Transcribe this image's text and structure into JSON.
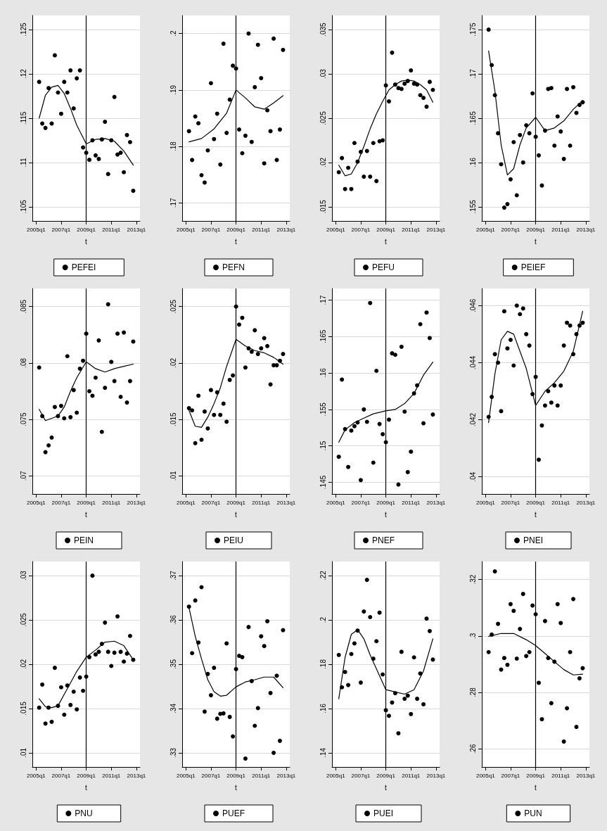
{
  "chart_data": [
    {
      "type": "scatter",
      "xlabel": "t",
      "x": [
        "2005-04",
        "2005-07",
        "2005-10",
        "2006-01",
        "2006-04",
        "2006-07",
        "2006-10",
        "2007-01",
        "2007-04",
        "2007-07",
        "2007-10",
        "2008-01",
        "2008-04",
        "2008-07",
        "2008-10",
        "2009-01",
        "2009-04",
        "2009-07",
        "2009-10",
        "2010-01",
        "2010-04",
        "2010-07",
        "2010-10",
        "2011-01",
        "2011-04",
        "2011-07",
        "2011-10",
        "2012-01",
        "2012-04",
        "2012-07",
        "2012-10"
      ],
      "xlim": [
        "2004-09-15",
        "2013-04-15"
      ],
      "xticks": [
        {
          "value": "2005-01",
          "label": "2005q1"
        },
        {
          "value": "2007-01",
          "label": "2007q1"
        },
        {
          "value": "2009-01",
          "label": "2009q1"
        },
        {
          "value": "2011-01",
          "label": "2011q1"
        },
        {
          "value": "2013-01",
          "label": "2013q1"
        }
      ],
      "ylim": [
        0.1034,
        0.1266
      ],
      "yticks": [
        {
          "value": 0.105,
          "label": ".105"
        },
        {
          "value": 0.11,
          "label": ".11"
        },
        {
          "value": 0.115,
          "label": ".115"
        },
        {
          "value": 0.12,
          "label": ".12"
        },
        {
          "value": 0.125,
          "label": ".125"
        }
      ],
      "grid": "y",
      "legend": "bottom",
      "marker": "circle",
      "ref_lines": [
        {
          "axis": "x",
          "value": "2009-01"
        }
      ],
      "series": [
        {
          "name": "PEFEI",
          "color": "#000000",
          "values": [
            0.1191,
            0.1144,
            0.1139,
            0.1184,
            0.1144,
            0.1221,
            0.1179,
            0.1155,
            0.1191,
            0.1179,
            0.1204,
            0.1161,
            0.1195,
            0.1204,
            0.1117,
            0.1111,
            0.1103,
            0.1125,
            0.1108,
            0.1104,
            0.1126,
            0.1146,
            0.1087,
            0.1125,
            0.1174,
            0.1109,
            0.1111,
            0.1089,
            0.1131,
            0.1123,
            0.1068
          ]
        },
        {
          "type": "line",
          "marker": "none",
          "color": "#000000",
          "x": [
            "2005-04",
            "2005-10",
            "2006-04",
            "2006-10",
            "2007-04",
            "2007-10",
            "2008-04",
            "2009-01",
            "2009-10",
            "2010-07",
            "2011-04",
            "2012-01",
            "2012-10"
          ],
          "values": [
            0.115,
            0.1176,
            0.1185,
            0.1187,
            0.1178,
            0.1161,
            0.1142,
            0.1121,
            0.1126,
            0.1127,
            0.1124,
            0.1113,
            0.1097
          ]
        }
      ]
    },
    {
      "type": "scatter",
      "xlabel": "t",
      "x": [
        "2005-04",
        "2005-07",
        "2005-10",
        "2006-01",
        "2006-04",
        "2006-07",
        "2006-10",
        "2007-01",
        "2007-04",
        "2007-07",
        "2007-10",
        "2008-01",
        "2008-04",
        "2008-07",
        "2008-10",
        "2009-01",
        "2009-04",
        "2009-07",
        "2009-10",
        "2010-01",
        "2010-04",
        "2010-07",
        "2010-10",
        "2011-01",
        "2011-04",
        "2011-07",
        "2011-10",
        "2012-01",
        "2012-04",
        "2012-07",
        "2012-10"
      ],
      "xlim": [
        "2004-09-15",
        "2013-04-15"
      ],
      "xticks": [
        {
          "value": "2005-01",
          "label": "2005q1"
        },
        {
          "value": "2007-01",
          "label": "2007q1"
        },
        {
          "value": "2009-01",
          "label": "2009q1"
        },
        {
          "value": "2011-01",
          "label": "2011q1"
        },
        {
          "value": "2013-01",
          "label": "2013q1"
        }
      ],
      "ylim": [
        0.1668,
        0.2032
      ],
      "yticks": [
        {
          "value": 0.17,
          "label": ".17"
        },
        {
          "value": 0.18,
          "label": ".18"
        },
        {
          "value": 0.19,
          "label": ".19"
        },
        {
          "value": 0.2,
          "label": ".2"
        }
      ],
      "grid": "y",
      "legend": "bottom",
      "marker": "circle",
      "ref_lines": [
        {
          "axis": "x",
          "value": "2009-01"
        }
      ],
      "series": [
        {
          "name": "PEFN",
          "color": "#000000",
          "values": [
            0.1827,
            0.1776,
            0.1853,
            0.1841,
            0.1749,
            0.1736,
            0.1793,
            0.1912,
            0.1813,
            0.1858,
            0.1768,
            0.1982,
            0.1824,
            0.1883,
            0.1943,
            0.1938,
            0.183,
            0.1788,
            0.1819,
            0.2,
            0.1808,
            0.1905,
            0.198,
            0.1921,
            0.177,
            0.1864,
            0.1827,
            0.1991,
            0.1776,
            0.183,
            0.1971
          ]
        },
        {
          "type": "line",
          "marker": "none",
          "color": "#000000",
          "x": [
            "2005-04",
            "2006-04",
            "2007-04",
            "2008-04",
            "2009-01",
            "2009-10",
            "2010-07",
            "2011-04",
            "2012-01",
            "2012-10"
          ],
          "values": [
            0.1808,
            0.1814,
            0.1831,
            0.1859,
            0.19,
            0.1886,
            0.187,
            0.1866,
            0.1877,
            0.189
          ]
        }
      ]
    },
    {
      "type": "scatter",
      "xlabel": "t",
      "x": [
        "2005-04",
        "2005-07",
        "2005-10",
        "2006-01",
        "2006-04",
        "2006-07",
        "2006-10",
        "2007-01",
        "2007-04",
        "2007-07",
        "2007-10",
        "2008-01",
        "2008-04",
        "2008-07",
        "2008-10",
        "2009-01",
        "2009-04",
        "2009-07",
        "2009-10",
        "2010-01",
        "2010-04",
        "2010-07",
        "2010-10",
        "2011-01",
        "2011-04",
        "2011-07",
        "2011-10",
        "2012-01",
        "2012-04",
        "2012-07",
        "2012-10"
      ],
      "xlim": [
        "2004-09-15",
        "2013-04-15"
      ],
      "xticks": [
        {
          "value": "2005-01",
          "label": "2005q1"
        },
        {
          "value": "2007-01",
          "label": "2007q1"
        },
        {
          "value": "2009-01",
          "label": "2009q1"
        },
        {
          "value": "2011-01",
          "label": "2011q1"
        },
        {
          "value": "2013-01",
          "label": "2013q1"
        }
      ],
      "ylim": [
        0.0134,
        0.0366
      ],
      "yticks": [
        {
          "value": 0.015,
          "label": ".015"
        },
        {
          "value": 0.02,
          "label": ".02"
        },
        {
          "value": 0.025,
          "label": ".025"
        },
        {
          "value": 0.03,
          "label": ".03"
        },
        {
          "value": 0.035,
          "label": ".035"
        }
      ],
      "grid": "y",
      "legend": "bottom",
      "marker": "circle",
      "ref_lines": [
        {
          "axis": "x",
          "value": "2009-01"
        }
      ],
      "series": [
        {
          "name": "PEFU",
          "color": "#000000",
          "values": [
            0.0189,
            0.0205,
            0.017,
            0.0194,
            0.017,
            0.0222,
            0.0201,
            0.0212,
            0.0184,
            0.0213,
            0.0184,
            0.0222,
            0.0179,
            0.0224,
            0.0225,
            0.0287,
            0.0269,
            0.0324,
            0.0288,
            0.0284,
            0.0283,
            0.0289,
            0.0292,
            0.0304,
            0.0289,
            0.0288,
            0.0276,
            0.0273,
            0.0263,
            0.0291,
            0.0282
          ]
        },
        {
          "type": "line",
          "marker": "none",
          "color": "#000000",
          "x": [
            "2005-04",
            "2005-10",
            "2006-04",
            "2006-10",
            "2007-04",
            "2007-10",
            "2008-04",
            "2008-10",
            "2009-04",
            "2009-10",
            "2010-04",
            "2010-10",
            "2011-04",
            "2011-10",
            "2012-04",
            "2012-10"
          ],
          "values": [
            0.0197,
            0.0185,
            0.0187,
            0.02,
            0.0218,
            0.0238,
            0.0255,
            0.0269,
            0.0282,
            0.0288,
            0.0292,
            0.0293,
            0.0292,
            0.0288,
            0.0282,
            0.0268
          ]
        }
      ]
    },
    {
      "type": "scatter",
      "xlabel": "t",
      "x": [
        "2005-04",
        "2005-07",
        "2005-10",
        "2006-01",
        "2006-04",
        "2006-07",
        "2006-10",
        "2007-01",
        "2007-04",
        "2007-07",
        "2007-10",
        "2008-01",
        "2008-04",
        "2008-07",
        "2008-10",
        "2009-01",
        "2009-04",
        "2009-07",
        "2009-10",
        "2010-01",
        "2010-04",
        "2010-07",
        "2010-10",
        "2011-01",
        "2011-04",
        "2011-07",
        "2011-10",
        "2012-01",
        "2012-04",
        "2012-07",
        "2012-10"
      ],
      "xlim": [
        "2004-09-15",
        "2013-04-15"
      ],
      "xticks": [
        {
          "value": "2005-01",
          "label": "2005q1"
        },
        {
          "value": "2007-01",
          "label": "2007q1"
        },
        {
          "value": "2009-01",
          "label": "2009q1"
        },
        {
          "value": "2011-01",
          "label": "2011q1"
        },
        {
          "value": "2013-01",
          "label": "2013q1"
        }
      ],
      "ylim": [
        0.1534,
        0.1766
      ],
      "yticks": [
        {
          "value": 0.155,
          "label": ".155"
        },
        {
          "value": 0.16,
          "label": ".16"
        },
        {
          "value": 0.165,
          "label": ".165"
        },
        {
          "value": 0.17,
          "label": ".17"
        },
        {
          "value": 0.175,
          "label": ".175"
        }
      ],
      "grid": "y",
      "legend": "bottom",
      "marker": "circle",
      "ref_lines": [
        {
          "axis": "x",
          "value": "2009-01"
        }
      ],
      "series": [
        {
          "name": "PEIEF",
          "color": "#000000",
          "values": [
            0.175,
            0.171,
            0.1676,
            0.1633,
            0.1598,
            0.1549,
            0.1553,
            0.1581,
            0.1623,
            0.1563,
            0.1631,
            0.16,
            0.1642,
            0.1633,
            0.1678,
            0.1629,
            0.1608,
            0.1574,
            0.1636,
            0.1683,
            0.1684,
            0.1619,
            0.1652,
            0.1635,
            0.1604,
            0.1683,
            0.1619,
            0.1685,
            0.1656,
            0.1665,
            0.1668
          ]
        },
        {
          "type": "line",
          "marker": "none",
          "color": "#000000",
          "x": [
            "2005-04",
            "2005-10",
            "2006-04",
            "2006-10",
            "2007-04",
            "2007-10",
            "2008-04",
            "2009-01",
            "2009-10",
            "2010-07",
            "2011-04",
            "2012-01",
            "2012-10"
          ],
          "values": [
            0.1726,
            0.1681,
            0.162,
            0.1586,
            0.1593,
            0.162,
            0.1639,
            0.1651,
            0.1636,
            0.1639,
            0.1647,
            0.166,
            0.167
          ]
        }
      ]
    },
    {
      "type": "scatter",
      "xlabel": "t",
      "x": [
        "2005-04",
        "2005-07",
        "2005-10",
        "2006-01",
        "2006-04",
        "2006-07",
        "2006-10",
        "2007-01",
        "2007-04",
        "2007-07",
        "2007-10",
        "2008-01",
        "2008-04",
        "2008-07",
        "2008-10",
        "2009-01",
        "2009-04",
        "2009-07",
        "2009-10",
        "2010-01",
        "2010-04",
        "2010-07",
        "2010-10",
        "2011-01",
        "2011-04",
        "2011-07",
        "2011-10",
        "2012-01",
        "2012-04",
        "2012-07",
        "2012-10"
      ],
      "xlim": [
        "2004-09-15",
        "2013-04-15"
      ],
      "xticks": [
        {
          "value": "2005-01",
          "label": "2005q1"
        },
        {
          "value": "2007-01",
          "label": "2007q1"
        },
        {
          "value": "2009-01",
          "label": "2009q1"
        },
        {
          "value": "2011-01",
          "label": "2011q1"
        },
        {
          "value": "2013-01",
          "label": "2013q1"
        }
      ],
      "ylim": [
        0.0684,
        0.0866
      ],
      "yticks": [
        {
          "value": 0.07,
          "label": ".07"
        },
        {
          "value": 0.075,
          "label": ".075"
        },
        {
          "value": 0.08,
          "label": ".08"
        },
        {
          "value": 0.085,
          "label": ".085"
        }
      ],
      "grid": "y",
      "legend": "bottom",
      "marker": "circle",
      "ref_lines": [
        {
          "axis": "x",
          "value": "2009-01"
        }
      ],
      "series": [
        {
          "name": "PEIN",
          "color": "#000000",
          "values": [
            0.0796,
            0.0753,
            0.0721,
            0.0727,
            0.0734,
            0.0761,
            0.0753,
            0.0762,
            0.0751,
            0.0806,
            0.0752,
            0.0776,
            0.0756,
            0.0795,
            0.0802,
            0.0826,
            0.0775,
            0.0771,
            0.0787,
            0.082,
            0.0739,
            0.0778,
            0.0852,
            0.0801,
            0.0784,
            0.0826,
            0.077,
            0.0827,
            0.0765,
            0.0784,
            0.0819
          ]
        },
        {
          "type": "line",
          "marker": "none",
          "color": "#000000",
          "x": [
            "2005-04",
            "2005-10",
            "2006-04",
            "2006-10",
            "2007-04",
            "2007-10",
            "2008-04",
            "2009-01",
            "2009-10",
            "2010-07",
            "2011-04",
            "2012-01",
            "2012-10"
          ],
          "values": [
            0.0759,
            0.0749,
            0.0751,
            0.0753,
            0.0761,
            0.0775,
            0.0787,
            0.0801,
            0.0795,
            0.0792,
            0.0795,
            0.0797,
            0.0799
          ]
        }
      ]
    },
    {
      "type": "scatter",
      "xlabel": "t",
      "x": [
        "2005-04",
        "2005-07",
        "2005-10",
        "2006-01",
        "2006-04",
        "2006-07",
        "2006-10",
        "2007-01",
        "2007-04",
        "2007-07",
        "2007-10",
        "2008-01",
        "2008-04",
        "2008-07",
        "2008-10",
        "2009-01",
        "2009-04",
        "2009-07",
        "2009-10",
        "2010-01",
        "2010-04",
        "2010-07",
        "2010-10",
        "2011-01",
        "2011-04",
        "2011-07",
        "2011-10",
        "2012-01",
        "2012-04",
        "2012-07",
        "2012-10"
      ],
      "xlim": [
        "2004-09-15",
        "2013-04-15"
      ],
      "xticks": [
        {
          "value": "2005-01",
          "label": "2005q1"
        },
        {
          "value": "2007-01",
          "label": "2007q1"
        },
        {
          "value": "2009-01",
          "label": "2009q1"
        },
        {
          "value": "2011-01",
          "label": "2011q1"
        },
        {
          "value": "2013-01",
          "label": "2013q1"
        }
      ],
      "ylim": [
        0.0084,
        0.0266
      ],
      "yticks": [
        {
          "value": 0.01,
          "label": ".01"
        },
        {
          "value": 0.015,
          "label": ".015"
        },
        {
          "value": 0.02,
          "label": ".02"
        },
        {
          "value": 0.025,
          "label": ".025"
        }
      ],
      "grid": "y",
      "legend": "bottom",
      "marker": "circle",
      "ref_lines": [
        {
          "axis": "x",
          "value": "2009-01"
        }
      ],
      "series": [
        {
          "name": "PEIU",
          "color": "#000000",
          "values": [
            0.016,
            0.0158,
            0.0129,
            0.0171,
            0.0132,
            0.0157,
            0.0142,
            0.0176,
            0.0154,
            0.0174,
            0.0154,
            0.0164,
            0.0148,
            0.0185,
            0.0189,
            0.025,
            0.0234,
            0.024,
            0.0196,
            0.0213,
            0.021,
            0.0229,
            0.0208,
            0.0213,
            0.0222,
            0.0215,
            0.0181,
            0.0198,
            0.0198,
            0.0202,
            0.0208
          ]
        },
        {
          "type": "line",
          "marker": "none",
          "color": "#000000",
          "x": [
            "2005-04",
            "2005-10",
            "2006-04",
            "2006-10",
            "2007-04",
            "2007-10",
            "2008-04",
            "2009-01",
            "2009-10",
            "2010-07",
            "2011-04",
            "2012-01",
            "2012-10"
          ],
          "values": [
            0.0158,
            0.0144,
            0.0143,
            0.0152,
            0.0164,
            0.0178,
            0.0197,
            0.0221,
            0.0215,
            0.0211,
            0.0209,
            0.0205,
            0.0199
          ]
        }
      ]
    },
    {
      "type": "scatter",
      "xlabel": "t",
      "x": [
        "2005-04",
        "2005-07",
        "2005-10",
        "2006-01",
        "2006-04",
        "2006-07",
        "2006-10",
        "2007-01",
        "2007-04",
        "2007-07",
        "2007-10",
        "2008-01",
        "2008-04",
        "2008-07",
        "2008-10",
        "2009-01",
        "2009-04",
        "2009-07",
        "2009-10",
        "2010-01",
        "2010-04",
        "2010-07",
        "2010-10",
        "2011-01",
        "2011-04",
        "2011-07",
        "2011-10",
        "2012-01",
        "2012-04",
        "2012-07",
        "2012-10"
      ],
      "xlim": [
        "2004-09-15",
        "2013-04-15"
      ],
      "xticks": [
        {
          "value": "2005-01",
          "label": "2005q1"
        },
        {
          "value": "2007-01",
          "label": "2007q1"
        },
        {
          "value": "2009-01",
          "label": "2009q1"
        },
        {
          "value": "2011-01",
          "label": "2011q1"
        },
        {
          "value": "2013-01",
          "label": "2013q1"
        }
      ],
      "ylim": [
        0.1434,
        0.1716
      ],
      "yticks": [
        {
          "value": 0.145,
          "label": ".145"
        },
        {
          "value": 0.15,
          "label": ".15"
        },
        {
          "value": 0.155,
          "label": ".155"
        },
        {
          "value": 0.16,
          "label": ".16"
        },
        {
          "value": 0.165,
          "label": ".165"
        },
        {
          "value": 0.17,
          "label": ".17"
        }
      ],
      "grid": "y",
      "legend": "bottom",
      "marker": "circle",
      "ref_lines": [
        {
          "axis": "x",
          "value": "2009-01"
        }
      ],
      "series": [
        {
          "name": "PNEF",
          "color": "#000000",
          "values": [
            0.1485,
            0.1591,
            0.1523,
            0.1471,
            0.1521,
            0.1527,
            0.1532,
            0.1453,
            0.155,
            0.1533,
            0.1696,
            0.1477,
            0.1603,
            0.153,
            0.1516,
            0.1505,
            0.1536,
            0.1627,
            0.1625,
            0.1447,
            0.1636,
            0.1547,
            0.1464,
            0.1492,
            0.1572,
            0.1583,
            0.1667,
            0.1531,
            0.1683,
            0.1648,
            0.1543
          ]
        },
        {
          "type": "line",
          "marker": "none",
          "color": "#000000",
          "x": [
            "2005-04",
            "2005-10",
            "2006-07",
            "2007-04",
            "2008-01",
            "2009-01",
            "2009-10",
            "2010-07",
            "2011-04",
            "2012-01",
            "2012-10"
          ],
          "values": [
            0.1505,
            0.1522,
            0.1532,
            0.1538,
            0.1544,
            0.1548,
            0.155,
            0.1558,
            0.1572,
            0.1597,
            0.1615
          ]
        }
      ]
    },
    {
      "type": "scatter",
      "xlabel": "t",
      "x": [
        "2005-04",
        "2005-07",
        "2005-10",
        "2006-01",
        "2006-04",
        "2006-07",
        "2006-10",
        "2007-01",
        "2007-04",
        "2007-07",
        "2007-10",
        "2008-01",
        "2008-04",
        "2008-07",
        "2008-10",
        "2009-01",
        "2009-04",
        "2009-07",
        "2009-10",
        "2010-01",
        "2010-04",
        "2010-07",
        "2010-10",
        "2011-01",
        "2011-04",
        "2011-07",
        "2011-10",
        "2012-01",
        "2012-04",
        "2012-07",
        "2012-10"
      ],
      "xlim": [
        "2004-09-15",
        "2013-04-15"
      ],
      "xticks": [
        {
          "value": "2005-01",
          "label": "2005q1"
        },
        {
          "value": "2007-01",
          "label": "2007q1"
        },
        {
          "value": "2009-01",
          "label": "2009q1"
        },
        {
          "value": "2011-01",
          "label": "2011q1"
        },
        {
          "value": "2013-01",
          "label": "2013q1"
        }
      ],
      "ylim": [
        0.0394,
        0.0466
      ],
      "yticks": [
        {
          "value": 0.04,
          "label": ".04"
        },
        {
          "value": 0.042,
          "label": ".042"
        },
        {
          "value": 0.044,
          "label": ".044"
        },
        {
          "value": 0.046,
          "label": ".046"
        }
      ],
      "grid": "y",
      "legend": "bottom",
      "marker": "circle",
      "ref_lines": [
        {
          "axis": "x",
          "value": "2009-01"
        }
      ],
      "series": [
        {
          "name": "PNEI",
          "color": "#000000",
          "values": [
            0.0421,
            0.0428,
            0.0443,
            0.044,
            0.0423,
            0.0458,
            0.0445,
            0.0448,
            0.0439,
            0.046,
            0.0457,
            0.0459,
            0.045,
            0.0446,
            0.0429,
            0.0435,
            0.0406,
            0.0418,
            0.0425,
            0.043,
            0.0426,
            0.0432,
            0.0425,
            0.0432,
            0.0446,
            0.0454,
            0.0453,
            0.0443,
            0.045,
            0.0453,
            0.0454
          ]
        },
        {
          "type": "line",
          "marker": "none",
          "color": "#000000",
          "x": [
            "2005-04",
            "2005-10",
            "2006-04",
            "2006-10",
            "2007-04",
            "2007-10",
            "2008-04",
            "2009-01",
            "2009-10",
            "2010-07",
            "2011-04",
            "2012-01",
            "2012-10"
          ],
          "values": [
            0.0419,
            0.0436,
            0.0448,
            0.0451,
            0.045,
            0.0444,
            0.0438,
            0.0425,
            0.043,
            0.0433,
            0.0437,
            0.0444,
            0.0458
          ]
        }
      ]
    },
    {
      "type": "scatter",
      "xlabel": "t",
      "x": [
        "2005-04",
        "2005-07",
        "2005-10",
        "2006-01",
        "2006-04",
        "2006-07",
        "2006-10",
        "2007-01",
        "2007-04",
        "2007-07",
        "2007-10",
        "2008-01",
        "2008-04",
        "2008-07",
        "2008-10",
        "2009-01",
        "2009-04",
        "2009-07",
        "2009-10",
        "2010-01",
        "2010-04",
        "2010-07",
        "2010-10",
        "2011-01",
        "2011-04",
        "2011-07",
        "2011-10",
        "2012-01",
        "2012-04",
        "2012-07",
        "2012-10"
      ],
      "xlim": [
        "2004-09-15",
        "2013-04-15"
      ],
      "xticks": [
        {
          "value": "2005-01",
          "label": "2005q1"
        },
        {
          "value": "2007-01",
          "label": "2007q1"
        },
        {
          "value": "2009-01",
          "label": "2009q1"
        },
        {
          "value": "2011-01",
          "label": "2011q1"
        },
        {
          "value": "2013-01",
          "label": "2013q1"
        }
      ],
      "ylim": [
        0.0084,
        0.0316
      ],
      "yticks": [
        {
          "value": 0.01,
          "label": ".01"
        },
        {
          "value": 0.015,
          "label": ".015"
        },
        {
          "value": 0.02,
          "label": ".02"
        },
        {
          "value": 0.025,
          "label": ".025"
        },
        {
          "value": 0.03,
          "label": ".03"
        }
      ],
      "grid": "y",
      "legend": "bottom",
      "marker": "circle",
      "ref_lines": [
        {
          "axis": "x",
          "value": "2009-01"
        }
      ],
      "series": [
        {
          "name": "PNU",
          "color": "#000000",
          "values": [
            0.0151,
            0.0177,
            0.0133,
            0.0151,
            0.0135,
            0.0196,
            0.0153,
            0.0174,
            0.0143,
            0.0176,
            0.0154,
            0.0169,
            0.0149,
            0.0185,
            0.017,
            0.0186,
            0.0208,
            0.03,
            0.0211,
            0.0214,
            0.0223,
            0.0247,
            0.0214,
            0.0198,
            0.0213,
            0.0254,
            0.0214,
            0.0203,
            0.0212,
            0.0232,
            0.0205
          ]
        },
        {
          "type": "line",
          "marker": "none",
          "color": "#000000",
          "x": [
            "2005-04",
            "2005-10",
            "2006-04",
            "2006-10",
            "2007-04",
            "2007-10",
            "2008-04",
            "2009-01",
            "2009-10",
            "2010-07",
            "2011-04",
            "2012-01",
            "2012-10"
          ],
          "values": [
            0.0161,
            0.0152,
            0.0151,
            0.0153,
            0.0166,
            0.0179,
            0.0192,
            0.0208,
            0.0216,
            0.0225,
            0.0226,
            0.0221,
            0.0205
          ]
        }
      ]
    },
    {
      "type": "scatter",
      "xlabel": "t",
      "x": [
        "2005-04",
        "2005-07",
        "2005-10",
        "2006-01",
        "2006-04",
        "2006-07",
        "2006-10",
        "2007-01",
        "2007-04",
        "2007-07",
        "2007-10",
        "2008-01",
        "2008-04",
        "2008-07",
        "2008-10",
        "2009-01",
        "2009-04",
        "2009-07",
        "2009-10",
        "2010-01",
        "2010-04",
        "2010-07",
        "2010-10",
        "2011-01",
        "2011-04",
        "2011-07",
        "2011-10",
        "2012-01",
        "2012-04",
        "2012-07",
        "2012-10"
      ],
      "xlim": [
        "2004-09-15",
        "2013-04-15"
      ],
      "xticks": [
        {
          "value": "2005-01",
          "label": "2005q1"
        },
        {
          "value": "2007-01",
          "label": "2007q1"
        },
        {
          "value": "2009-01",
          "label": "2009q1"
        },
        {
          "value": "2011-01",
          "label": "2011q1"
        },
        {
          "value": "2013-01",
          "label": "2013q1"
        }
      ],
      "ylim": [
        0.3268,
        0.3732
      ],
      "yticks": [
        {
          "value": 0.33,
          "label": ".33"
        },
        {
          "value": 0.34,
          "label": ".34"
        },
        {
          "value": 0.35,
          "label": ".35"
        },
        {
          "value": 0.36,
          "label": ".36"
        },
        {
          "value": 0.37,
          "label": ".37"
        }
      ],
      "grid": "y",
      "legend": "bottom",
      "marker": "circle",
      "ref_lines": [
        {
          "axis": "x",
          "value": "2009-01"
        }
      ],
      "series": [
        {
          "name": "PUEF",
          "color": "#000000",
          "values": [
            0.363,
            0.3525,
            0.3644,
            0.3549,
            0.3674,
            0.3393,
            0.3478,
            0.343,
            0.3492,
            0.3377,
            0.3388,
            0.3389,
            0.3547,
            0.3381,
            0.3337,
            0.3489,
            0.3519,
            0.3516,
            0.3287,
            0.3584,
            0.3462,
            0.3361,
            0.3401,
            0.3563,
            0.3541,
            0.3597,
            0.3435,
            0.33,
            0.3474,
            0.3327,
            0.3577
          ]
        },
        {
          "type": "line",
          "marker": "none",
          "color": "#000000",
          "x": [
            "2005-04",
            "2005-10",
            "2006-04",
            "2006-10",
            "2007-04",
            "2007-10",
            "2008-04",
            "2009-01",
            "2009-10",
            "2010-07",
            "2011-04",
            "2012-01",
            "2012-10"
          ],
          "values": [
            0.3628,
            0.3563,
            0.3512,
            0.3465,
            0.3438,
            0.3428,
            0.343,
            0.3449,
            0.346,
            0.3465,
            0.3471,
            0.3471,
            0.3447
          ]
        }
      ]
    },
    {
      "type": "scatter",
      "xlabel": "t",
      "x": [
        "2005-04",
        "2005-07",
        "2005-10",
        "2006-01",
        "2006-04",
        "2006-07",
        "2006-10",
        "2007-01",
        "2007-04",
        "2007-07",
        "2007-10",
        "2008-01",
        "2008-04",
        "2008-07",
        "2008-10",
        "2009-01",
        "2009-04",
        "2009-07",
        "2009-10",
        "2010-01",
        "2010-04",
        "2010-07",
        "2010-10",
        "2011-01",
        "2011-04",
        "2011-07",
        "2011-10",
        "2012-01",
        "2012-04",
        "2012-07",
        "2012-10"
      ],
      "xlim": [
        "2004-09-15",
        "2013-04-15"
      ],
      "xticks": [
        {
          "value": "2005-01",
          "label": "2005q1"
        },
        {
          "value": "2007-01",
          "label": "2007q1"
        },
        {
          "value": "2009-01",
          "label": "2009q1"
        },
        {
          "value": "2011-01",
          "label": "2011q1"
        },
        {
          "value": "2013-01",
          "label": "2013q1"
        }
      ],
      "ylim": [
        0.1336,
        0.2264
      ],
      "yticks": [
        {
          "value": 0.14,
          "label": ".14"
        },
        {
          "value": 0.16,
          "label": ".16"
        },
        {
          "value": 0.18,
          "label": ".18"
        },
        {
          "value": 0.2,
          "label": ".2"
        },
        {
          "value": 0.22,
          "label": ".22"
        }
      ],
      "grid": "y",
      "legend": "bottom",
      "marker": "circle",
      "ref_lines": [
        {
          "axis": "x",
          "value": "2009-01"
        }
      ],
      "series": [
        {
          "name": "PUEI",
          "color": "#000000",
          "values": [
            0.1842,
            0.1696,
            0.1765,
            0.1706,
            0.1846,
            0.1894,
            0.1952,
            0.1717,
            0.2038,
            0.2181,
            0.2013,
            0.1825,
            0.1904,
            0.2033,
            0.1754,
            0.1592,
            0.1567,
            0.1627,
            0.1669,
            0.1488,
            0.1856,
            0.1644,
            0.1658,
            0.1575,
            0.1831,
            0.1644,
            0.1758,
            0.1619,
            0.2006,
            0.195,
            0.1821
          ]
        },
        {
          "type": "line",
          "marker": "none",
          "color": "#000000",
          "x": [
            "2005-04",
            "2005-10",
            "2006-04",
            "2006-10",
            "2007-04",
            "2007-10",
            "2008-04",
            "2009-01",
            "2009-10",
            "2010-07",
            "2011-04",
            "2012-01",
            "2012-10"
          ],
          "values": [
            0.1644,
            0.1831,
            0.1935,
            0.1956,
            0.1915,
            0.1842,
            0.1779,
            0.1685,
            0.1675,
            0.1665,
            0.1685,
            0.1769,
            0.1915
          ]
        }
      ]
    },
    {
      "type": "scatter",
      "xlabel": "t",
      "x": [
        "2005-04",
        "2005-07",
        "2005-10",
        "2006-01",
        "2006-04",
        "2006-07",
        "2006-10",
        "2007-01",
        "2007-04",
        "2007-07",
        "2007-10",
        "2008-01",
        "2008-04",
        "2008-07",
        "2008-10",
        "2009-01",
        "2009-04",
        "2009-07",
        "2009-10",
        "2010-01",
        "2010-04",
        "2010-07",
        "2010-10",
        "2011-01",
        "2011-04",
        "2011-07",
        "2011-10",
        "2012-01",
        "2012-04",
        "2012-07",
        "2012-10"
      ],
      "xlim": [
        "2004-09-15",
        "2013-04-15"
      ],
      "xticks": [
        {
          "value": "2005-01",
          "label": "2005q1"
        },
        {
          "value": "2007-01",
          "label": "2007q1"
        },
        {
          "value": "2009-01",
          "label": "2009q1"
        },
        {
          "value": "2011-01",
          "label": "2011q1"
        },
        {
          "value": "2013-01",
          "label": "2013q1"
        }
      ],
      "ylim": [
        0.2536,
        0.3264
      ],
      "yticks": [
        {
          "value": 0.26,
          "label": ".26"
        },
        {
          "value": 0.28,
          "label": ".28"
        },
        {
          "value": 0.3,
          "label": ".3"
        },
        {
          "value": 0.32,
          "label": ".32"
        }
      ],
      "grid": "y",
      "legend": "bottom",
      "marker": "circle",
      "ref_lines": [
        {
          "axis": "x",
          "value": "2009-01"
        }
      ],
      "series": [
        {
          "name": "PUN",
          "color": "#000000",
          "values": [
            0.2943,
            0.3005,
            0.3229,
            0.3043,
            0.2881,
            0.2922,
            0.2898,
            0.3113,
            0.3089,
            0.292,
            0.3025,
            0.3149,
            0.2929,
            0.2943,
            0.3108,
            0.3077,
            0.2834,
            0.2705,
            0.3053,
            0.2922,
            0.2762,
            0.2909,
            0.3113,
            0.3046,
            0.2626,
            0.2744,
            0.2943,
            0.3131,
            0.2678,
            0.285,
            0.2886
          ]
        },
        {
          "type": "line",
          "marker": "none",
          "color": "#000000",
          "x": [
            "2005-04",
            "2006-04",
            "2007-04",
            "2008-04",
            "2009-01",
            "2009-10",
            "2010-07",
            "2011-04",
            "2012-01",
            "2012-10"
          ],
          "values": [
            0.2999,
            0.3009,
            0.3009,
            0.2987,
            0.2966,
            0.2938,
            0.2909,
            0.2881,
            0.2862,
            0.2865
          ]
        }
      ]
    }
  ]
}
